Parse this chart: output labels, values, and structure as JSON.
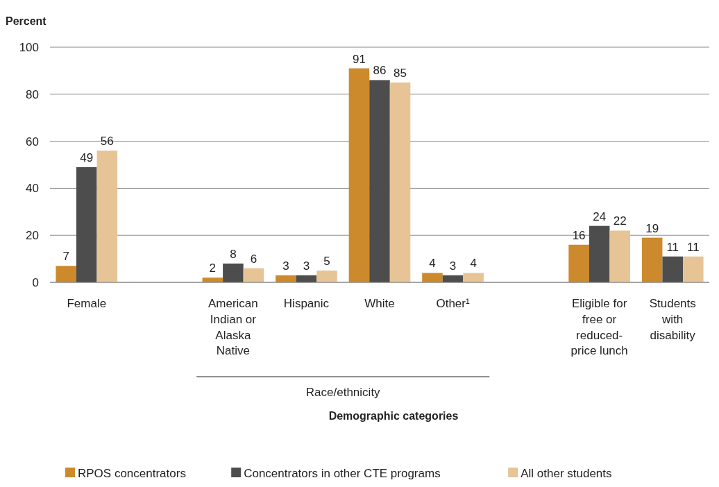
{
  "chart_data": {
    "type": "bar",
    "ylabel": "Percent",
    "xlabel": "Demographic categories",
    "categories": [
      "Female",
      null,
      "American Indian or Alaska Native",
      "Hispanic",
      "White",
      "Other¹",
      null,
      "Eligible for free or reduced-price lunch",
      "Students with disability"
    ],
    "series": [
      {
        "name": "RPOS concentrators",
        "color": "#cc8a2c",
        "values": [
          7,
          null,
          2,
          3,
          91,
          4,
          null,
          16,
          19
        ]
      },
      {
        "name": "Concentrators in other CTE programs",
        "color": "#4d4d4d",
        "values": [
          49,
          null,
          8,
          3,
          86,
          3,
          null,
          24,
          11
        ]
      },
      {
        "name": "All other students",
        "color": "#e6c496",
        "values": [
          56,
          null,
          6,
          5,
          85,
          4,
          null,
          22,
          11
        ]
      }
    ],
    "ylim": [
      0,
      100
    ],
    "yticks": [
      0,
      20,
      40,
      60,
      80,
      100
    ],
    "grid": "y",
    "data_labels": true,
    "legend": "bottom",
    "annotations": [
      "Race/ethnicity"
    ]
  }
}
